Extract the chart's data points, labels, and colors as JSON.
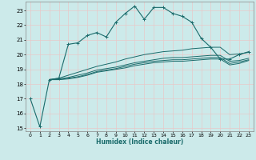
{
  "title": "",
  "xlabel": "Humidex (Indice chaleur)",
  "xlim": [
    -0.5,
    23.5
  ],
  "ylim": [
    14.8,
    23.6
  ],
  "yticks": [
    15,
    16,
    17,
    18,
    19,
    20,
    21,
    22,
    23
  ],
  "xticks": [
    0,
    1,
    2,
    3,
    4,
    5,
    6,
    7,
    8,
    9,
    10,
    11,
    12,
    13,
    14,
    15,
    16,
    17,
    18,
    19,
    20,
    21,
    22,
    23
  ],
  "bg_color": "#cceaea",
  "grid_color": "#e8c8c8",
  "line_color": "#1a6b6b",
  "line1_x": [
    0,
    1,
    2,
    3,
    4,
    5,
    6,
    7,
    8,
    9,
    10,
    11,
    12,
    13,
    14,
    15,
    16,
    17,
    18,
    19,
    20,
    21,
    22,
    23
  ],
  "line1_y": [
    17.0,
    15.1,
    18.3,
    18.4,
    20.7,
    20.8,
    21.3,
    21.5,
    21.2,
    22.2,
    22.8,
    23.3,
    22.4,
    23.2,
    23.2,
    22.8,
    22.6,
    22.2,
    21.1,
    20.5,
    19.7,
    19.7,
    20.0,
    20.2
  ],
  "line2_x": [
    2,
    3,
    4,
    5,
    6,
    7,
    8,
    9,
    10,
    11,
    12,
    13,
    14,
    15,
    16,
    17,
    18,
    19,
    20,
    21,
    22,
    23
  ],
  "line2_y": [
    18.3,
    18.4,
    18.6,
    18.8,
    19.0,
    19.2,
    19.35,
    19.5,
    19.7,
    19.85,
    20.0,
    20.1,
    20.2,
    20.25,
    20.3,
    20.4,
    20.45,
    20.5,
    20.5,
    20.0,
    20.05,
    20.15
  ],
  "line3_x": [
    2,
    3,
    4,
    5,
    6,
    7,
    8,
    9,
    10,
    11,
    12,
    13,
    14,
    15,
    16,
    17,
    18,
    19,
    20,
    21,
    22,
    23
  ],
  "line3_y": [
    18.3,
    18.35,
    18.45,
    18.6,
    18.75,
    18.95,
    19.05,
    19.15,
    19.3,
    19.45,
    19.55,
    19.65,
    19.75,
    19.8,
    19.8,
    19.85,
    19.9,
    19.95,
    19.95,
    19.55,
    19.6,
    19.75
  ],
  "line4_x": [
    2,
    3,
    4,
    5,
    6,
    7,
    8,
    9,
    10,
    11,
    12,
    13,
    14,
    15,
    16,
    17,
    18,
    19,
    20,
    21,
    22,
    23
  ],
  "line4_y": [
    18.3,
    18.3,
    18.4,
    18.5,
    18.65,
    18.85,
    18.95,
    19.05,
    19.2,
    19.35,
    19.45,
    19.55,
    19.6,
    19.65,
    19.65,
    19.7,
    19.75,
    19.8,
    19.8,
    19.4,
    19.5,
    19.65
  ],
  "line5_x": [
    2,
    3,
    4,
    5,
    6,
    7,
    8,
    9,
    10,
    11,
    12,
    13,
    14,
    15,
    16,
    17,
    18,
    19,
    20,
    21,
    22,
    23
  ],
  "line5_y": [
    18.3,
    18.3,
    18.35,
    18.45,
    18.6,
    18.8,
    18.9,
    19.0,
    19.1,
    19.25,
    19.35,
    19.45,
    19.5,
    19.55,
    19.55,
    19.6,
    19.65,
    19.7,
    19.7,
    19.3,
    19.4,
    19.6
  ]
}
